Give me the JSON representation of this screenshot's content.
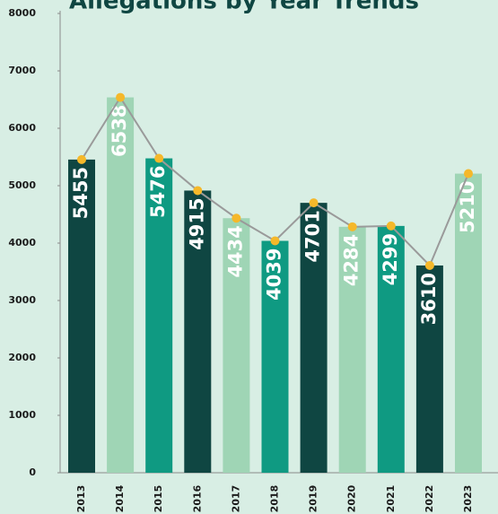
{
  "chart_data": {
    "type": "bar",
    "title": "Allegations by Year Trends",
    "categories": [
      "2013",
      "2014",
      "2015",
      "2016",
      "2017",
      "2018",
      "2019",
      "2020",
      "2021",
      "2022",
      "2023"
    ],
    "values": [
      5455,
      6538,
      5476,
      4915,
      4434,
      4039,
      4701,
      4284,
      4299,
      3610,
      5210
    ],
    "colors": [
      "#0f4642",
      "#9fd5b5",
      "#0f9a82",
      "#0f4642",
      "#9fd5b5",
      "#0f9a82",
      "#0f4642",
      "#9fd5b5",
      "#0f9a82",
      "#0f4642",
      "#9fd5b5"
    ],
    "line_color": "#9a9a9a",
    "marker_color": "#f5b82a",
    "ylim": [
      0,
      8000
    ],
    "yticks": [
      0,
      1000,
      2000,
      3000,
      4000,
      5000,
      6000,
      7000,
      8000
    ],
    "grid": false
  }
}
